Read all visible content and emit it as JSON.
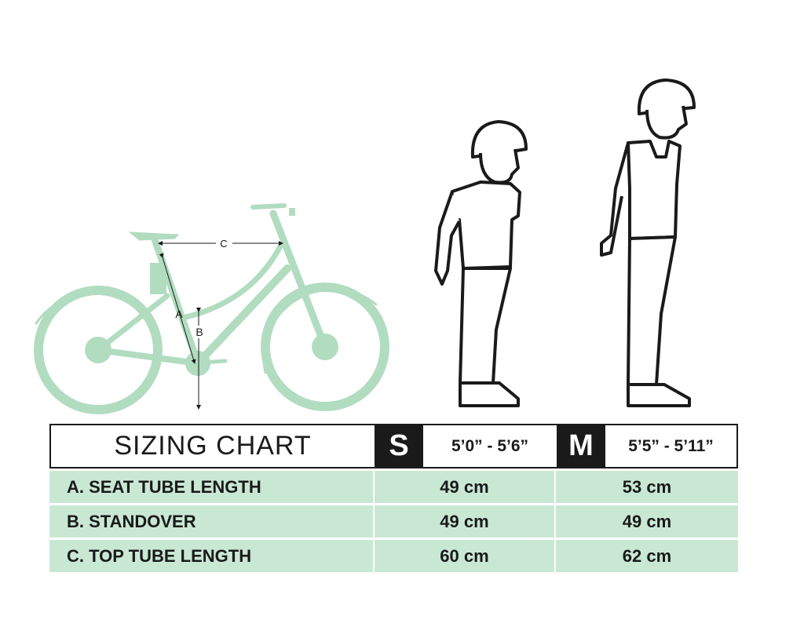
{
  "diagram": {
    "labels": {
      "a": "A",
      "b": "B",
      "c": "C"
    },
    "colors": {
      "bike": "#b1dcc0",
      "row_fill": "#c9e8d4",
      "ink": "#1a1a1a"
    }
  },
  "table": {
    "title": "SIZING CHART",
    "sizes": [
      {
        "size": "S",
        "range": "5’0” - 5’6”"
      },
      {
        "size": "M",
        "range": "5’5” - 5’11”"
      }
    ],
    "rows": [
      {
        "label": "A. SEAT TUBE LENGTH",
        "values": [
          "49 cm",
          "53 cm"
        ]
      },
      {
        "label": "B. STANDOVER",
        "values": [
          "49 cm",
          "49 cm"
        ]
      },
      {
        "label": "C. TOP TUBE LENGTH",
        "values": [
          "60 cm",
          "62 cm"
        ]
      }
    ]
  }
}
